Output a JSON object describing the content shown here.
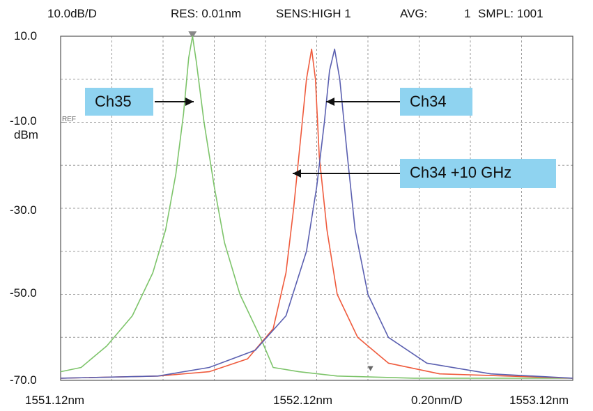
{
  "header": {
    "scale": "10.0dB/D",
    "res": "RES: 0.01nm",
    "sens": "SENS:HIGH 1",
    "avg_label": "AVG:",
    "avg_value": "1",
    "smpl": "SMPL: 1001"
  },
  "y_axis": {
    "ticks": [
      "10.0",
      "-10.0",
      "-30.0",
      "-50.0",
      "-70.0"
    ],
    "unit": "dBm",
    "ref_label": "REF"
  },
  "x_axis": {
    "start": "1551.12nm",
    "center": "1552.12nm",
    "span_per_div": "0.20nm/D",
    "stop": "1553.12nm"
  },
  "annotations": {
    "ch35": "Ch35",
    "ch34": "Ch34",
    "ch34_plus": "Ch34 +10 GHz"
  },
  "colors": {
    "ch35": "#7dc46a",
    "ch34": "#5a5fb0",
    "ch34_plus": "#ef5a3c",
    "callout": "#8fd3f0",
    "grid": "#9a9a9a"
  },
  "chart_data": {
    "type": "line",
    "xlim": [
      1551.12,
      1553.12
    ],
    "ylim": [
      -70,
      10
    ],
    "x_divisions": 10,
    "y_divisions": 8,
    "grid": true,
    "series": [
      {
        "name": "Ch35",
        "color": "#7dc46a",
        "points": [
          [
            1551.12,
            -68
          ],
          [
            1551.2,
            -67
          ],
          [
            1551.3,
            -62
          ],
          [
            1551.4,
            -55
          ],
          [
            1551.48,
            -45
          ],
          [
            1551.53,
            -35
          ],
          [
            1551.57,
            -22
          ],
          [
            1551.6,
            -8
          ],
          [
            1551.62,
            5
          ],
          [
            1551.635,
            10
          ],
          [
            1551.65,
            4
          ],
          [
            1551.68,
            -10
          ],
          [
            1551.72,
            -25
          ],
          [
            1551.76,
            -38
          ],
          [
            1551.82,
            -50
          ],
          [
            1551.9,
            -60
          ],
          [
            1551.95,
            -67
          ],
          [
            1552.05,
            -68
          ],
          [
            1552.2,
            -69
          ],
          [
            1552.5,
            -69.5
          ],
          [
            1553.12,
            -69.5
          ]
        ]
      },
      {
        "name": "Ch34 +10 GHz",
        "color": "#ef5a3c",
        "points": [
          [
            1551.12,
            -69.5
          ],
          [
            1551.5,
            -69
          ],
          [
            1551.7,
            -68
          ],
          [
            1551.85,
            -65
          ],
          [
            1551.95,
            -58
          ],
          [
            1552.0,
            -45
          ],
          [
            1552.03,
            -30
          ],
          [
            1552.06,
            -12
          ],
          [
            1552.08,
            0
          ],
          [
            1552.1,
            7
          ],
          [
            1552.115,
            0
          ],
          [
            1552.13,
            -18
          ],
          [
            1552.16,
            -35
          ],
          [
            1552.2,
            -50
          ],
          [
            1552.28,
            -60
          ],
          [
            1552.4,
            -66
          ],
          [
            1552.6,
            -68.5
          ],
          [
            1553.12,
            -69.5
          ]
        ]
      },
      {
        "name": "Ch34",
        "color": "#5a5fb0",
        "points": [
          [
            1551.12,
            -69.5
          ],
          [
            1551.5,
            -69
          ],
          [
            1551.7,
            -67
          ],
          [
            1551.88,
            -63
          ],
          [
            1552.0,
            -55
          ],
          [
            1552.08,
            -40
          ],
          [
            1552.12,
            -25
          ],
          [
            1552.15,
            -10
          ],
          [
            1552.17,
            2
          ],
          [
            1552.19,
            7
          ],
          [
            1552.21,
            0
          ],
          [
            1552.24,
            -18
          ],
          [
            1552.27,
            -35
          ],
          [
            1552.32,
            -50
          ],
          [
            1552.4,
            -60
          ],
          [
            1552.55,
            -66
          ],
          [
            1552.8,
            -68.5
          ],
          [
            1553.12,
            -69.5
          ]
        ]
      }
    ]
  }
}
